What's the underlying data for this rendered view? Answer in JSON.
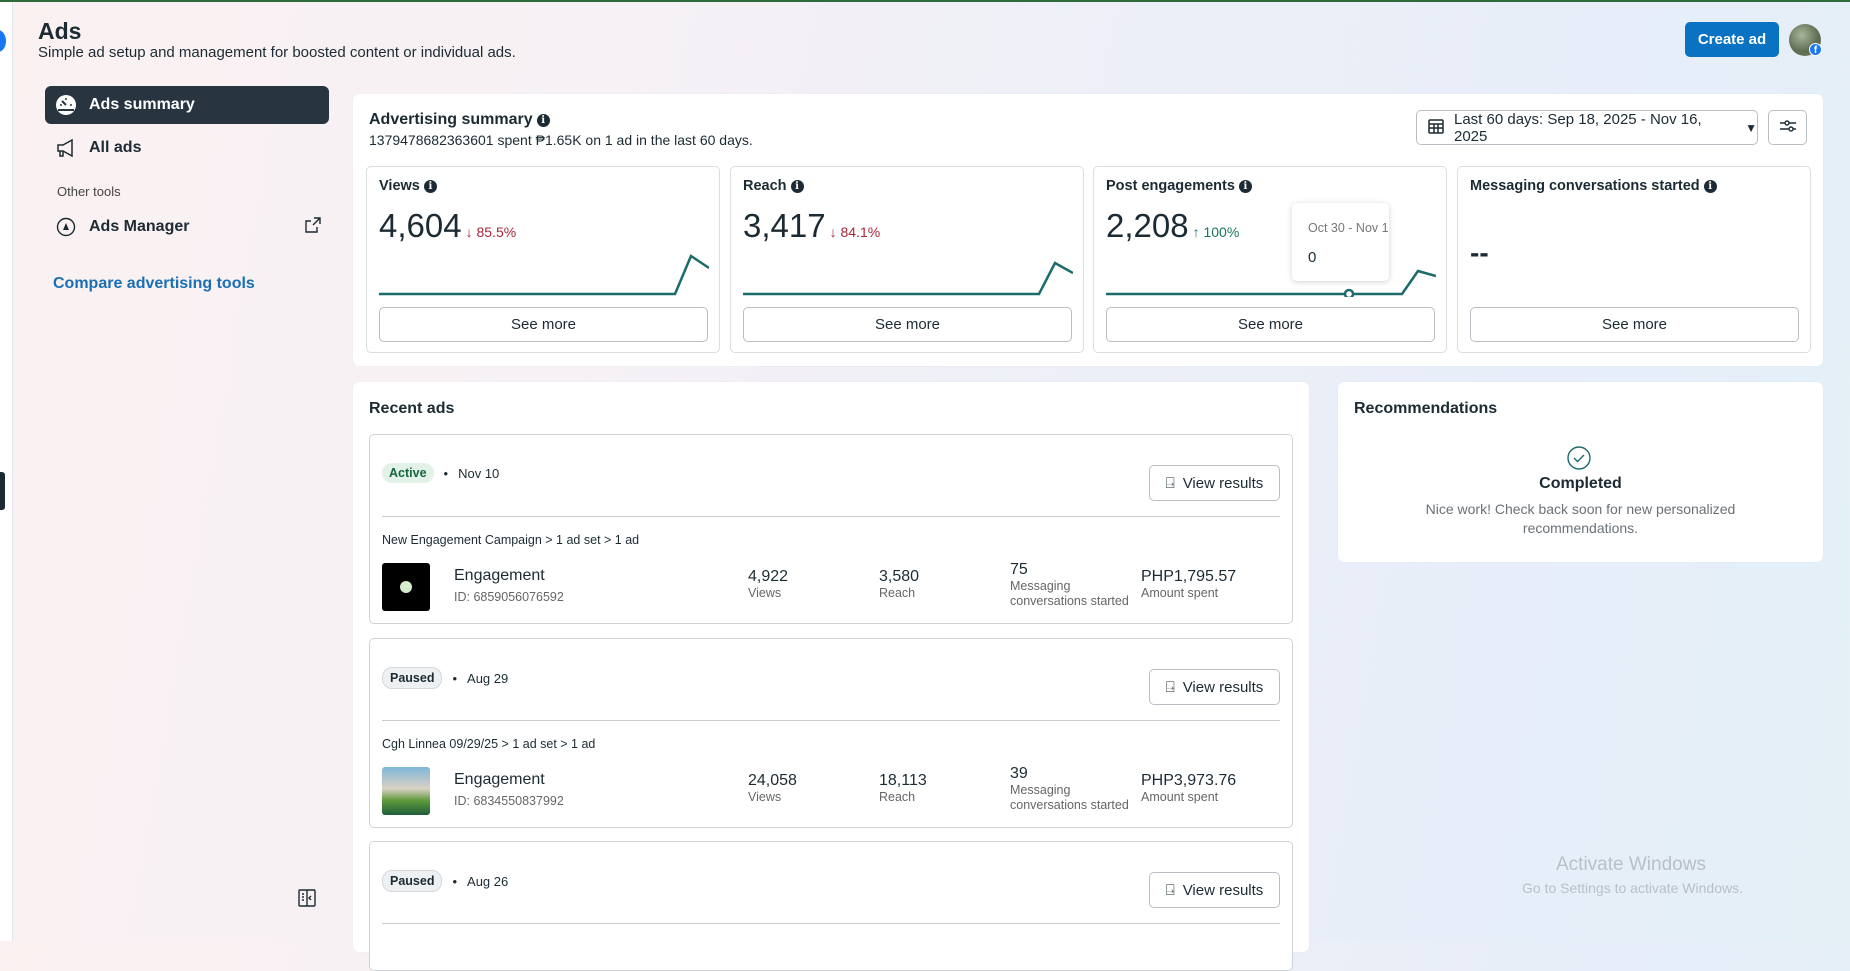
{
  "header": {
    "title": "Ads",
    "subtitle": "Simple ad setup and management for boosted content or individual ads.",
    "create_label": "Create ad"
  },
  "sidebar": {
    "items": [
      {
        "label": "Ads summary",
        "icon": "gauge-icon",
        "active": true
      },
      {
        "label": "All ads",
        "icon": "megaphone-icon"
      }
    ],
    "section_label": "Other tools",
    "tools": [
      {
        "label": "Ads Manager",
        "icon": "ads-manager-icon",
        "external": true
      }
    ],
    "compare_link": "Compare advertising tools"
  },
  "summary": {
    "title": "Advertising summary",
    "description": "1379478682363601 spent ₱1.65K on 1 ad in the last 60 days.",
    "date_range": "Last 60 days: Sep 18, 2025 - Nov 16, 2025",
    "metrics": [
      {
        "label": "Views",
        "value": "4,604",
        "change": "↓ 85.5%",
        "direction": "down",
        "see_more": "See more"
      },
      {
        "label": "Reach",
        "value": "3,417",
        "change": "↓ 84.1%",
        "direction": "down",
        "see_more": "See more"
      },
      {
        "label": "Post engagements",
        "value": "2,208",
        "change": "↑ 100%",
        "direction": "up",
        "see_more": "See more"
      },
      {
        "label": "Messaging conversations started",
        "value": "--",
        "see_more": "See more"
      }
    ],
    "tooltip": {
      "date": "Oct 30 - Nov 1",
      "value": "0"
    },
    "colors": {
      "line": "#1c6b6b",
      "down": "#a8283a",
      "up": "#17765b"
    }
  },
  "recent": {
    "title": "Recent ads",
    "view_results": "View results",
    "ads": [
      {
        "status": "Active",
        "date": "Nov 10",
        "breadcrumb": "New Engagement Campaign > 1 ad set > 1 ad",
        "name": "Engagement",
        "id": "ID: 6859056076592",
        "views": "4,922",
        "views_label": "Views",
        "reach": "3,580",
        "reach_label": "Reach",
        "messaging": "75",
        "messaging_label": "Messaging conversations started",
        "spent": "PHP1,795.57",
        "spent_label": "Amount spent"
      },
      {
        "status": "Paused",
        "date": "Aug 29",
        "breadcrumb": "Cgh Linnea 09/29/25 > 1 ad set > 1 ad",
        "name": "Engagement",
        "id": "ID: 6834550837992",
        "views": "24,058",
        "views_label": "Views",
        "reach": "18,113",
        "reach_label": "Reach",
        "messaging": "39",
        "messaging_label": "Messaging conversations started",
        "spent": "PHP3,973.76",
        "spent_label": "Amount spent"
      },
      {
        "status": "Paused",
        "date": "Aug 26"
      }
    ]
  },
  "recommendations": {
    "title": "Recommendations",
    "status": "Completed",
    "message": "Nice work! Check back soon for new personalized recommendations."
  },
  "watermark": {
    "title": "Activate Windows",
    "subtitle": "Go to Settings to activate Windows."
  }
}
